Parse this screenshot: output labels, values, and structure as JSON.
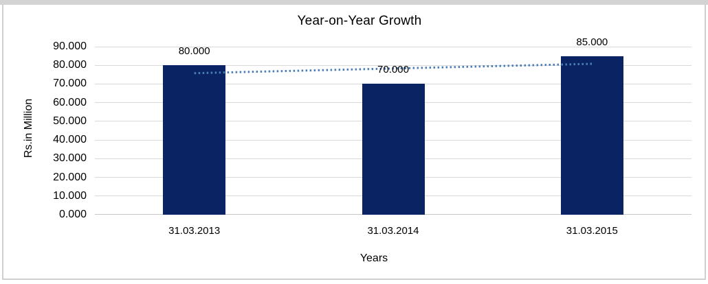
{
  "chart_data": {
    "type": "bar",
    "title": "Year-on-Year Growth",
    "xlabel": "Years",
    "ylabel": "Rs.in Million",
    "categories": [
      "31.03.2013",
      "31.03.2014",
      "31.03.2015"
    ],
    "values": [
      80,
      70,
      85
    ],
    "data_labels": [
      "80.000",
      "70.000",
      "85.000"
    ],
    "y_ticks": [
      "0.000",
      "10.000",
      "20.000",
      "30.000",
      "40.000",
      "50.000",
      "60.000",
      "70.000",
      "80.000",
      "90.000"
    ],
    "ylim": [
      0,
      90
    ],
    "y_step": 10,
    "grid": true,
    "legend": "none",
    "trendline": {
      "style": "dotted",
      "start_value": 75.8,
      "end_value": 80.8,
      "color": "#4a7ebb"
    },
    "colors": {
      "bar": "#0a2362",
      "gridline": "#d9d9d9",
      "axis_line": "#c6c6c6",
      "text": "#000000",
      "frame": "#d3d3d3"
    }
  }
}
